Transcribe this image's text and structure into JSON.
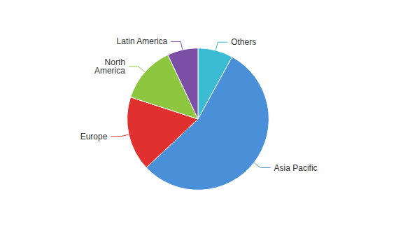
{
  "chart_data": {
    "type": "pie",
    "categories": [
      "Others",
      "Asia Pacific",
      "Europe",
      "North\nAmerica",
      "Latin America"
    ],
    "values": [
      8,
      55,
      17,
      13,
      7
    ],
    "colors": [
      "#3bbcd4",
      "#4a90d9",
      "#e03030",
      "#8dc63f",
      "#7b4fa6"
    ]
  }
}
